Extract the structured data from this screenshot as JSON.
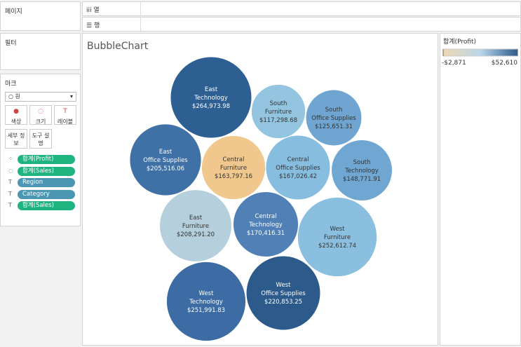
{
  "sidebar": {
    "pages": "페이지",
    "filters": "필터",
    "marks": {
      "title": "마크",
      "mark_type": "원",
      "buttons": [
        "색상",
        "크기",
        "레이블",
        "세부 정보",
        "도구 설명"
      ],
      "pills": [
        {
          "label": "합계(Profit)",
          "color": "#1fb37f"
        },
        {
          "label": "합계(Sales)",
          "color": "#1fb37f"
        },
        {
          "label": "Region",
          "color": "#4b97b3"
        },
        {
          "label": "Category",
          "color": "#4b97b3"
        },
        {
          "label": "합계(Sales)",
          "color": "#1fb37f"
        }
      ]
    }
  },
  "shelves": {
    "columns": "열",
    "rows": "행"
  },
  "chart_data": {
    "type": "bubble",
    "title": "BubbleChart",
    "regions": [
      "East",
      "South",
      "South",
      "East",
      "Central",
      "Central",
      "South",
      "East",
      "Central",
      "West",
      "West",
      "West"
    ],
    "categories": [
      "Technology",
      "Furniture",
      "Office Supplies",
      "Office Supplies",
      "Furniture",
      "Office Supplies",
      "Technology",
      "Furniture",
      "Technology",
      "Furniture",
      "Technology",
      "Office Supplies"
    ],
    "values": [
      264973.98,
      117298.68,
      125651.31,
      205516.06,
      163797.16,
      167026.42,
      148771.91,
      208291.2,
      170416.31,
      252612.74,
      251991.83,
      220853.25
    ],
    "value_labels": [
      "$264,973.98",
      "$117,298.68",
      "$125,651.31",
      "$205,516.06",
      "$163,797.16",
      "$167,026.42",
      "$148,771.91",
      "$208,291.20",
      "$170,416.31",
      "$252,612.74",
      "$251,991.83",
      "$220,853.25"
    ],
    "colors": [
      "#2e5f92",
      "#93c4e0",
      "#6fa5d0",
      "#3f70a6",
      "#f0c88e",
      "#87bee0",
      "#6fa6d2",
      "#b5cfdc",
      "#5080b5",
      "#8bbfdf",
      "#3c6ca3",
      "#2c5a8a"
    ],
    "legend": {
      "title": "합계(Profit)",
      "range": [
        {
          "value": -2871,
          "label": "-$2,871"
        },
        {
          "value": 52610,
          "label": "$52,610"
        }
      ],
      "colors": [
        "#f0d8b0",
        "#b9d7ea",
        "#2d5a8b"
      ]
    }
  }
}
